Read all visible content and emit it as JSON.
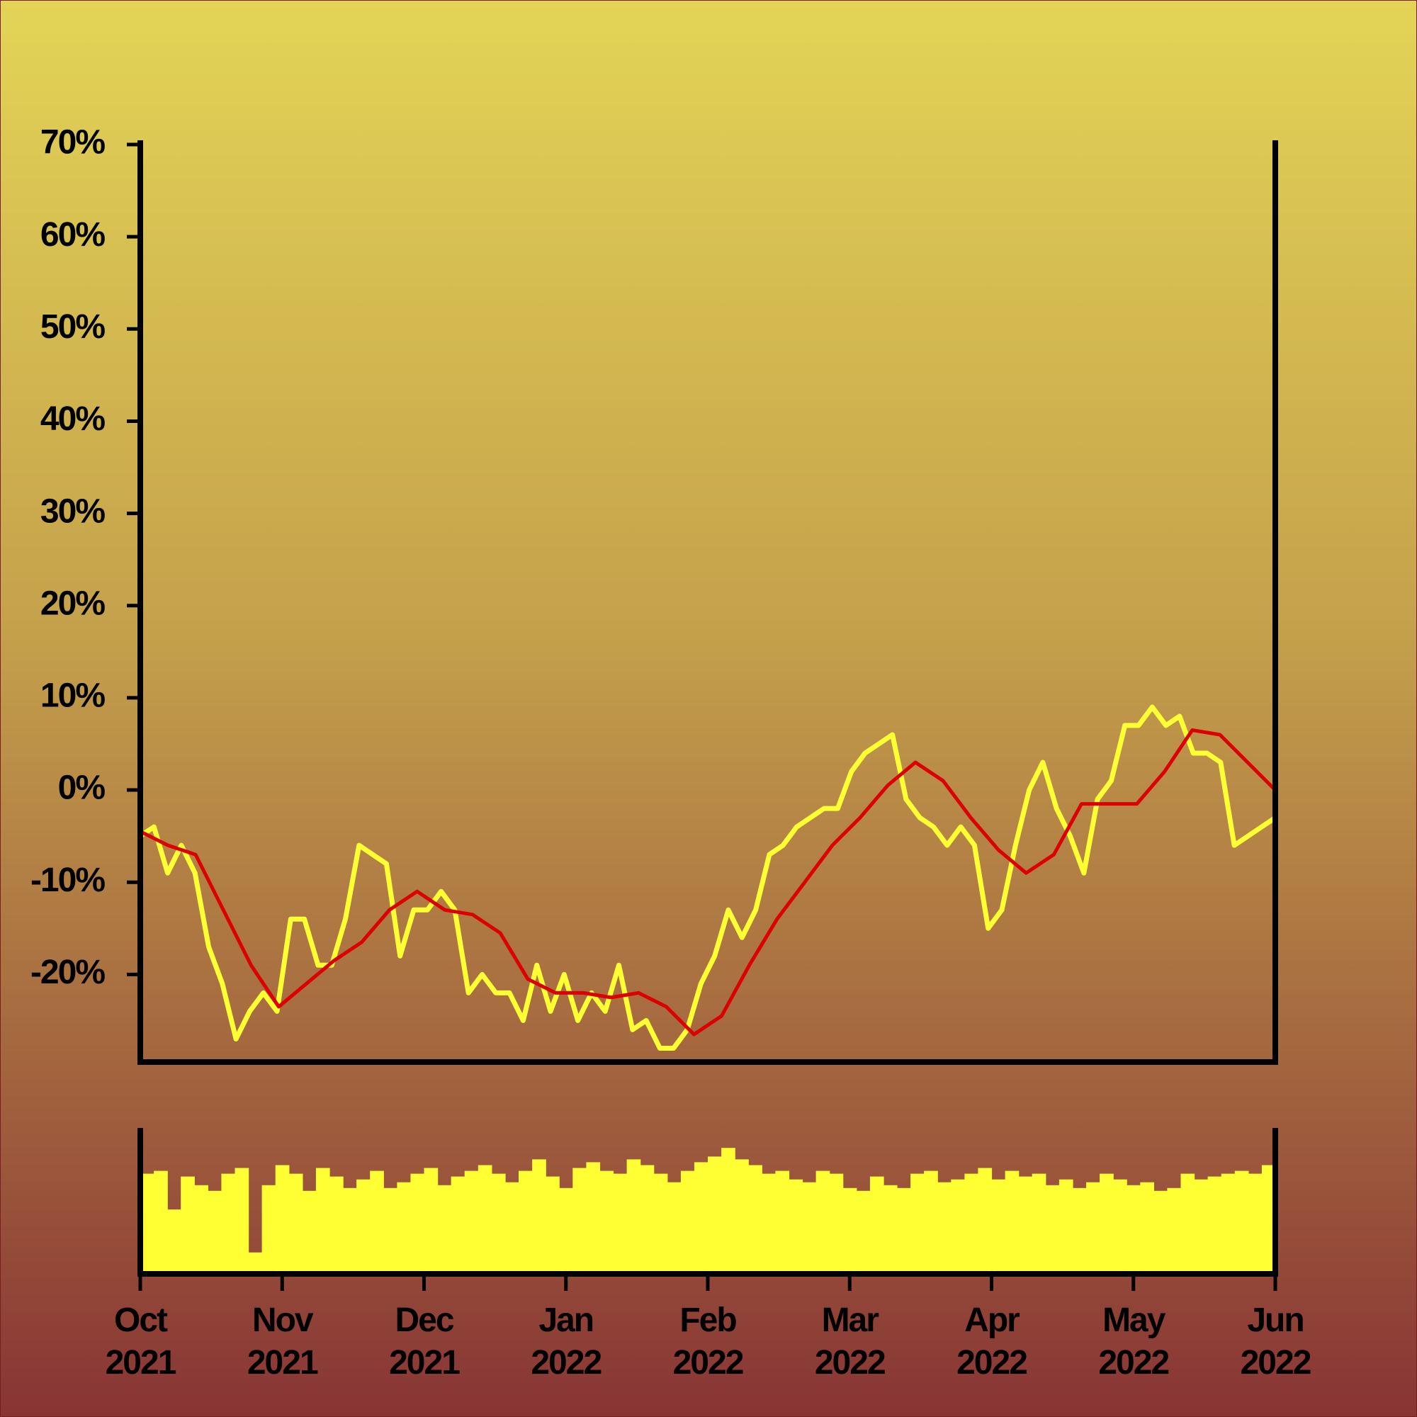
{
  "chart_data": [
    {
      "type": "line",
      "xlim": [
        "2021-10",
        "2022-06"
      ],
      "ylim": [
        -29.5,
        70
      ],
      "yticks": [
        {
          "value": -20,
          "label": "-20%"
        },
        {
          "value": -10,
          "label": "-10%"
        },
        {
          "value": 0,
          "label": "0%"
        },
        {
          "value": 10,
          "label": "10%"
        },
        {
          "value": 20,
          "label": "20%"
        },
        {
          "value": 30,
          "label": "30%"
        },
        {
          "value": 40,
          "label": "40%"
        },
        {
          "value": 50,
          "label": "50%"
        },
        {
          "value": 60,
          "label": "60%"
        },
        {
          "value": 70,
          "label": "70%"
        }
      ],
      "series": [
        {
          "color": "#ffff33",
          "values": [
            -5,
            -4,
            -9,
            -6,
            -9,
            -17,
            -21,
            -27,
            -24,
            -22,
            -24,
            -14,
            -14,
            -19,
            -19,
            -14,
            -6,
            -7,
            -8,
            -18,
            -13,
            -13,
            -11,
            -13,
            -22,
            -20,
            -22,
            -22,
            -25,
            -19,
            -24,
            -20,
            -25,
            -22,
            -24,
            -19,
            -26,
            -25,
            -28,
            -28,
            -26,
            -21,
            -18,
            -13,
            -16,
            -13,
            -7,
            -6,
            -4,
            -3,
            -2,
            -2,
            2,
            4,
            5,
            6,
            -1,
            -3,
            -4,
            -6,
            -4,
            -6,
            -15,
            -13,
            -6,
            0,
            3,
            -2,
            -5,
            -9,
            -1,
            1,
            7,
            7,
            9,
            7,
            8,
            4,
            4,
            3,
            -6,
            -5,
            -4,
            -3
          ]
        },
        {
          "color": "#dd0000",
          "values": [
            -4.5,
            -6,
            -7,
            -13,
            -19,
            -23.5,
            -21,
            -18.5,
            -16.5,
            -13,
            -11,
            -13,
            -13.5,
            -15.5,
            -20.5,
            -22,
            -22,
            -22.5,
            -22,
            -23.5,
            -26.5,
            -24.5,
            -19,
            -14,
            -10,
            -6,
            -3,
            0.5,
            3,
            1,
            -3,
            -6.5,
            -9,
            -7,
            -1.5,
            -1.5,
            -1.5,
            2,
            6.5,
            6,
            3,
            0
          ]
        }
      ]
    },
    {
      "type": "bar",
      "xlim": [
        "2021-10",
        "2022-06"
      ],
      "ylim": [
        0,
        100
      ],
      "color": "#ffff33",
      "xticks": [
        {
          "value": "2021-10",
          "label": "Oct\n2021"
        },
        {
          "value": "2021-11",
          "label": "Nov\n2021"
        },
        {
          "value": "2021-12",
          "label": "Dec\n2021"
        },
        {
          "value": "2022-01",
          "label": "Jan\n2022"
        },
        {
          "value": "2022-02",
          "label": "Feb\n2022"
        },
        {
          "value": "2022-03",
          "label": "Mar\n2022"
        },
        {
          "value": "2022-04",
          "label": "Apr\n2022"
        },
        {
          "value": "2022-05",
          "label": "May\n2022"
        },
        {
          "value": "2022-06",
          "label": "Jun\n2022"
        }
      ],
      "values": [
        70,
        72,
        45,
        68,
        62,
        58,
        70,
        74,
        15,
        62,
        76,
        70,
        58,
        74,
        68,
        60,
        66,
        72,
        60,
        64,
        70,
        74,
        62,
        68,
        72,
        76,
        70,
        64,
        72,
        80,
        68,
        60,
        74,
        78,
        72,
        70,
        80,
        76,
        70,
        64,
        72,
        78,
        82,
        88,
        80,
        76,
        70,
        72,
        66,
        64,
        72,
        70,
        60,
        58,
        68,
        62,
        60,
        70,
        72,
        64,
        66,
        70,
        74,
        66,
        72,
        68,
        70,
        62,
        66,
        60,
        64,
        70,
        66,
        62,
        64,
        58,
        60,
        70,
        66,
        68,
        70,
        72,
        70,
        76
      ]
    }
  ]
}
